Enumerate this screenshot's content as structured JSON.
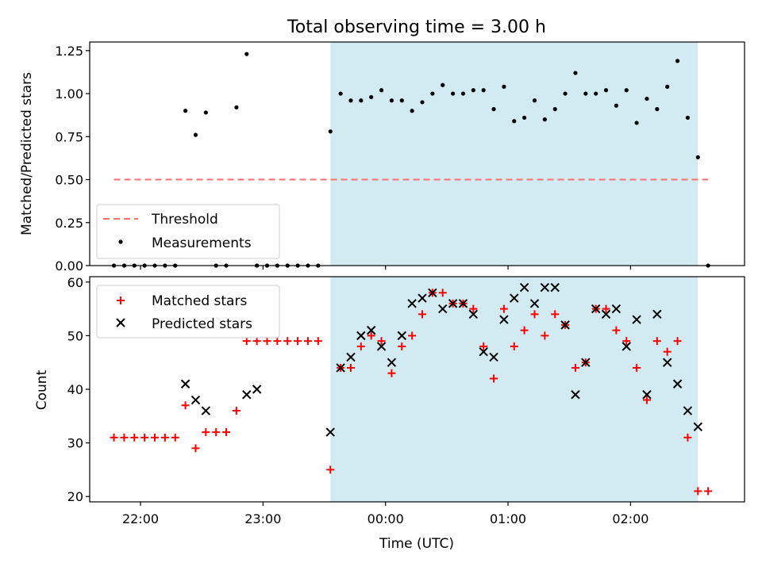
{
  "figure": {
    "title": "Total observing time = 3.00 h",
    "xlabel": "Time (UTC)",
    "x_ticks": [
      "22:00",
      "23:00",
      "00:00",
      "01:00",
      "02:00"
    ]
  },
  "colors": {
    "background": "#ffffff",
    "shade": "#add8e6",
    "threshold": "#ff7070",
    "matched": "#ff0000",
    "predicted": "#000000",
    "measurements": "#000000"
  },
  "chart_data": [
    {
      "type": "scatter",
      "panel": "top",
      "title": "Total observing time = 3.00 h",
      "ylabel": "Matched/Predicted stars",
      "ylim": [
        0,
        1.3
      ],
      "y_ticks": [
        "0.00",
        "0.25",
        "0.50",
        "0.75",
        "1.00",
        "1.25"
      ],
      "xlim": [
        "21:38",
        "02:58"
      ],
      "shaded_interval": [
        "23:33",
        "02:33"
      ],
      "grid": false,
      "legend_position": "lower-left",
      "threshold": {
        "name": "Threshold",
        "value": 0.5,
        "x_range": [
          "21:47",
          "02:38"
        ]
      },
      "series": [
        {
          "name": "Measurements",
          "x": [
            "21:47",
            "21:52",
            "21:57",
            "22:02",
            "22:07",
            "22:12",
            "22:17",
            "22:22",
            "22:27",
            "22:32",
            "22:37",
            "22:42",
            "22:47",
            "22:52",
            "22:57",
            "23:02",
            "23:07",
            "23:12",
            "23:17",
            "23:22",
            "23:27",
            "23:33",
            "23:38",
            "23:43",
            "23:48",
            "23:53",
            "23:58",
            "00:03",
            "00:08",
            "00:13",
            "00:18",
            "00:23",
            "00:28",
            "00:33",
            "00:38",
            "00:43",
            "00:48",
            "00:53",
            "00:58",
            "01:03",
            "01:08",
            "01:13",
            "01:18",
            "01:23",
            "01:28",
            "01:33",
            "01:38",
            "01:43",
            "01:48",
            "01:53",
            "01:58",
            "02:03",
            "02:08",
            "02:13",
            "02:18",
            "02:23",
            "02:28",
            "02:33",
            "02:38"
          ],
          "y": [
            0,
            0,
            0,
            0,
            0,
            0,
            0,
            0.9,
            0.76,
            0.89,
            0,
            0,
            0.92,
            1.23,
            0,
            0,
            0,
            0,
            0,
            0,
            0,
            0.78,
            1.0,
            0.96,
            0.96,
            0.98,
            1.02,
            0.96,
            0.96,
            0.9,
            0.95,
            1.0,
            1.05,
            1.0,
            1.0,
            1.02,
            1.02,
            0.91,
            1.04,
            0.84,
            0.86,
            0.96,
            0.85,
            0.91,
            1.0,
            1.12,
            1.0,
            1.0,
            1.02,
            0.93,
            1.02,
            0.83,
            0.97,
            0.91,
            1.04,
            1.19,
            0.86,
            0.63,
            0
          ]
        }
      ]
    },
    {
      "type": "scatter",
      "panel": "bottom",
      "ylabel": "Count",
      "xlabel": "Time (UTC)",
      "ylim": [
        19,
        61
      ],
      "y_ticks": [
        "20",
        "30",
        "40",
        "50",
        "60"
      ],
      "xlim": [
        "21:38",
        "02:58"
      ],
      "shaded_interval": [
        "23:33",
        "02:33"
      ],
      "grid": false,
      "legend_position": "upper-left",
      "series": [
        {
          "name": "Matched stars",
          "marker": "plus",
          "x": [
            "21:47",
            "21:52",
            "21:57",
            "22:02",
            "22:07",
            "22:12",
            "22:17",
            "22:22",
            "22:27",
            "22:32",
            "22:37",
            "22:42",
            "22:47",
            "22:52",
            "22:57",
            "23:02",
            "23:07",
            "23:12",
            "23:17",
            "23:22",
            "23:27",
            "23:33",
            "23:38",
            "23:43",
            "23:48",
            "23:53",
            "23:58",
            "00:03",
            "00:08",
            "00:13",
            "00:18",
            "00:23",
            "00:28",
            "00:33",
            "00:38",
            "00:43",
            "00:48",
            "00:53",
            "00:58",
            "01:03",
            "01:08",
            "01:13",
            "01:18",
            "01:23",
            "01:28",
            "01:33",
            "01:38",
            "01:43",
            "01:48",
            "01:53",
            "01:58",
            "02:03",
            "02:08",
            "02:13",
            "02:18",
            "02:23",
            "02:28",
            "02:33",
            "02:38"
          ],
          "y": [
            31,
            31,
            31,
            31,
            31,
            31,
            31,
            37,
            29,
            32,
            32,
            32,
            36,
            49,
            49,
            49,
            49,
            49,
            49,
            49,
            49,
            25,
            44,
            44,
            48,
            50,
            49,
            43,
            48,
            50,
            54,
            58,
            58,
            56,
            56,
            55,
            48,
            42,
            55,
            48,
            51,
            54,
            50,
            54,
            52,
            44,
            45,
            55,
            55,
            51,
            49,
            44,
            38,
            49,
            47,
            49,
            31,
            21,
            21
          ]
        },
        {
          "name": "Predicted stars",
          "marker": "x",
          "x": [
            "22:22",
            "22:27",
            "22:32",
            "22:52",
            "22:57",
            "23:33",
            "23:38",
            "23:43",
            "23:48",
            "23:53",
            "23:58",
            "00:03",
            "00:08",
            "00:13",
            "00:18",
            "00:23",
            "00:28",
            "00:33",
            "00:38",
            "00:43",
            "00:48",
            "00:53",
            "00:58",
            "01:03",
            "01:08",
            "01:13",
            "01:18",
            "01:23",
            "01:28",
            "01:33",
            "01:38",
            "01:43",
            "01:48",
            "01:53",
            "01:58",
            "02:03",
            "02:08",
            "02:13",
            "02:18",
            "02:23",
            "02:28",
            "02:33"
          ],
          "y": [
            41,
            38,
            36,
            39,
            40,
            32,
            44,
            46,
            50,
            51,
            48,
            45,
            50,
            56,
            57,
            58,
            55,
            56,
            56,
            54,
            47,
            46,
            53,
            57,
            59,
            56,
            59,
            59,
            52,
            39,
            45,
            55,
            54,
            55,
            48,
            53,
            39,
            54,
            45,
            41,
            36,
            33
          ]
        }
      ]
    }
  ]
}
